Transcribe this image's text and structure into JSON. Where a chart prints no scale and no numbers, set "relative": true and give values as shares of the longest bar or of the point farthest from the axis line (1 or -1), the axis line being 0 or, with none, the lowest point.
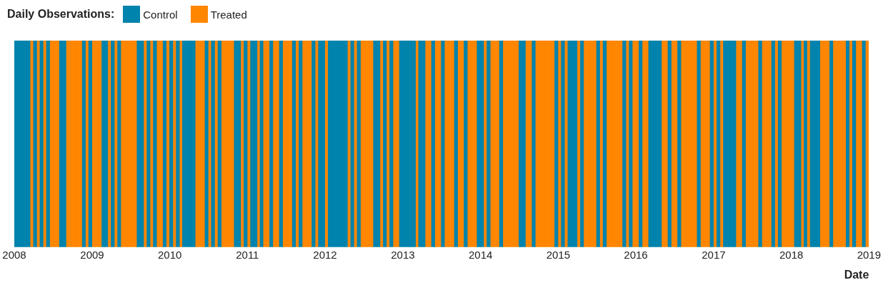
{
  "chart_data": {
    "type": "bar",
    "legend_title": "Daily Observations:",
    "xlabel": "Date",
    "relative": true,
    "stacked": true,
    "legend": "top left",
    "xlim": [
      "2008",
      "2019"
    ],
    "xticks": [
      "2008",
      "2009",
      "2010",
      "2011",
      "2012",
      "2013",
      "2014",
      "2015",
      "2016",
      "2017",
      "2018",
      "2019"
    ],
    "x": [
      "2008-01-08",
      "2008-01-23",
      "2008-02-08",
      "2008-02-23",
      "2008-03-08",
      "2008-03-23",
      "2008-04-08",
      "2008-04-23",
      "2008-05-08",
      "2008-05-23",
      "2008-06-08",
      "2008-06-23",
      "2008-07-08",
      "2008-07-23",
      "2008-08-08",
      "2008-08-23",
      "2008-09-08",
      "2008-09-23",
      "2008-10-08",
      "2008-10-23",
      "2008-11-08",
      "2008-11-23",
      "2008-12-08",
      "2008-12-23",
      "2009-01-08",
      "2009-01-23",
      "2009-02-08",
      "2009-02-23",
      "2009-03-08",
      "2009-03-23",
      "2009-04-08",
      "2009-04-23",
      "2009-05-08",
      "2009-05-23",
      "2009-06-08",
      "2009-06-23",
      "2009-07-08",
      "2009-07-23",
      "2009-08-08",
      "2009-08-23",
      "2009-09-08",
      "2009-09-23",
      "2009-10-08",
      "2009-10-23",
      "2009-11-08",
      "2009-11-23",
      "2009-12-08",
      "2009-12-23",
      "2010-01-08",
      "2010-01-23",
      "2010-02-08",
      "2010-02-23",
      "2010-03-08",
      "2010-03-23",
      "2010-04-08",
      "2010-04-23",
      "2010-05-08",
      "2010-05-23",
      "2010-06-08",
      "2010-06-23",
      "2010-07-08",
      "2010-07-23",
      "2010-08-08",
      "2010-08-23",
      "2010-09-08",
      "2010-09-23",
      "2010-10-08",
      "2010-10-23",
      "2010-11-08",
      "2010-11-23",
      "2010-12-08",
      "2010-12-23",
      "2011-01-08",
      "2011-01-23",
      "2011-02-08",
      "2011-02-23",
      "2011-03-08",
      "2011-03-23",
      "2011-04-08",
      "2011-04-23",
      "2011-05-08",
      "2011-05-23",
      "2011-06-08",
      "2011-06-23",
      "2011-07-08",
      "2011-07-23",
      "2011-08-08",
      "2011-08-23",
      "2011-09-08",
      "2011-09-23",
      "2011-10-08",
      "2011-10-23",
      "2011-11-08",
      "2011-11-23",
      "2011-12-08",
      "2011-12-23",
      "2012-01-08",
      "2012-01-23",
      "2012-02-08",
      "2012-02-23",
      "2012-03-08",
      "2012-03-23",
      "2012-04-08",
      "2012-04-23",
      "2012-05-08",
      "2012-05-23",
      "2012-06-08",
      "2012-06-23",
      "2012-07-08",
      "2012-07-23",
      "2012-08-08",
      "2012-08-23",
      "2012-09-08",
      "2012-09-23",
      "2012-10-08",
      "2012-10-23",
      "2012-11-08",
      "2012-11-23",
      "2012-12-08",
      "2012-12-23",
      "2013-01-08",
      "2013-01-23",
      "2013-02-08",
      "2013-02-23",
      "2013-03-08",
      "2013-03-23",
      "2013-04-08",
      "2013-04-23",
      "2013-05-08",
      "2013-05-23",
      "2013-06-08",
      "2013-06-23",
      "2013-07-08",
      "2013-07-23",
      "2013-08-08",
      "2013-08-23",
      "2013-09-08",
      "2013-09-23",
      "2013-10-08",
      "2013-10-23",
      "2013-11-08",
      "2013-11-23",
      "2013-12-08",
      "2013-12-23",
      "2014-01-08",
      "2014-01-23",
      "2014-02-08",
      "2014-02-23",
      "2014-03-08",
      "2014-03-23",
      "2014-04-08",
      "2014-04-23",
      "2014-05-08",
      "2014-05-23",
      "2014-06-08",
      "2014-06-23",
      "2014-07-08",
      "2014-07-23",
      "2014-08-08",
      "2014-08-23",
      "2014-09-08",
      "2014-09-23",
      "2014-10-08",
      "2014-10-23",
      "2014-11-08",
      "2014-11-23",
      "2014-12-08",
      "2014-12-23",
      "2015-01-08",
      "2015-01-23",
      "2015-02-08",
      "2015-02-23",
      "2015-03-08",
      "2015-03-23",
      "2015-04-08",
      "2015-04-23",
      "2015-05-08",
      "2015-05-23",
      "2015-06-08",
      "2015-06-23",
      "2015-07-08",
      "2015-07-23",
      "2015-08-08",
      "2015-08-23",
      "2015-09-08",
      "2015-09-23",
      "2015-10-08",
      "2015-10-23",
      "2015-11-08",
      "2015-11-23",
      "2015-12-08",
      "2015-12-23",
      "2016-01-08",
      "2016-01-23",
      "2016-02-08",
      "2016-02-23",
      "2016-03-08",
      "2016-03-23",
      "2016-04-08",
      "2016-04-23",
      "2016-05-08",
      "2016-05-23",
      "2016-06-08",
      "2016-06-23",
      "2016-07-08",
      "2016-07-23",
      "2016-08-08",
      "2016-08-23",
      "2016-09-08",
      "2016-09-23",
      "2016-10-08",
      "2016-10-23",
      "2016-11-08",
      "2016-11-23",
      "2016-12-08",
      "2016-12-23",
      "2017-01-08",
      "2017-01-23",
      "2017-02-08",
      "2017-02-23",
      "2017-03-08",
      "2017-03-23",
      "2017-04-08",
      "2017-04-23",
      "2017-05-08",
      "2017-05-23",
      "2017-06-08",
      "2017-06-23",
      "2017-07-08",
      "2017-07-23",
      "2017-08-08",
      "2017-08-23",
      "2017-09-08",
      "2017-09-23",
      "2017-10-08",
      "2017-10-23",
      "2017-11-08",
      "2017-11-23",
      "2017-12-08",
      "2017-12-23",
      "2018-01-08",
      "2018-01-23",
      "2018-02-08",
      "2018-02-23",
      "2018-03-08",
      "2018-03-23",
      "2018-04-08",
      "2018-04-23",
      "2018-05-08",
      "2018-05-23",
      "2018-06-08",
      "2018-06-23",
      "2018-07-08",
      "2018-07-23",
      "2018-08-08",
      "2018-08-23",
      "2018-09-08",
      "2018-09-23",
      "2018-10-08",
      "2018-10-23",
      "2018-11-08",
      "2018-11-23",
      "2018-12-08",
      "2018-12-23"
    ],
    "series": [
      {
        "name": "Control",
        "color": "#0083ac",
        "values": [
          1,
          1,
          1,
          1,
          1,
          null,
          1,
          null,
          1,
          null,
          1,
          null,
          null,
          null,
          1,
          1,
          null,
          null,
          null,
          null,
          null,
          1,
          null,
          1,
          null,
          null,
          null,
          1,
          1,
          null,
          1,
          null,
          1,
          null,
          null,
          null,
          null,
          null,
          1,
          1,
          null,
          1,
          null,
          1,
          null,
          null,
          1,
          null,
          1,
          null,
          1,
          null,
          1,
          1,
          1,
          1,
          null,
          null,
          null,
          1,
          null,
          1,
          null,
          1,
          null,
          null,
          null,
          null,
          1,
          1,
          null,
          1,
          null,
          1,
          1,
          null,
          1,
          null,
          null,
          1,
          null,
          null,
          1,
          null,
          null,
          null,
          1,
          null,
          1,
          null,
          null,
          null,
          1,
          null,
          1,
          1,
          null,
          1,
          1,
          1,
          1,
          1,
          1,
          null,
          1,
          null,
          1,
          null,
          null,
          null,
          null,
          1,
          1,
          null,
          1,
          null,
          1,
          null,
          null,
          1,
          1,
          1,
          1,
          1,
          null,
          1,
          1,
          null,
          null,
          1,
          null,
          null,
          1,
          null,
          null,
          null,
          1,
          null,
          null,
          1,
          null,
          null,
          null,
          1,
          1,
          null,
          1,
          null,
          null,
          null,
          1,
          null,
          null,
          null,
          null,
          null,
          1,
          1,
          null,
          null,
          1,
          null,
          null,
          null,
          null,
          null,
          null,
          1,
          null,
          1,
          null,
          1,
          1,
          1,
          null,
          1,
          null,
          null,
          null,
          null,
          1,
          null,
          1,
          null,
          null,
          null,
          null,
          null,
          1,
          null,
          1,
          null,
          null,
          1,
          null,
          null,
          1,
          1,
          1,
          1,
          null,
          null,
          1,
          null,
          null,
          1,
          null,
          null,
          null,
          null,
          null,
          1,
          null,
          null,
          null,
          1,
          null,
          1,
          null,
          1,
          1,
          1,
          1,
          null,
          null,
          1,
          null,
          null,
          null,
          null,
          1,
          null,
          null,
          null,
          1,
          null,
          1,
          null,
          null,
          null,
          null,
          1,
          1,
          null,
          1,
          null,
          1,
          1,
          1,
          null,
          null,
          null,
          1,
          null,
          null,
          null,
          null,
          1,
          null,
          1,
          null,
          null,
          1,
          null
        ]
      },
      {
        "name": "Treated",
        "color": "#ff8600",
        "values": [
          null,
          null,
          null,
          null,
          null,
          1,
          null,
          1,
          null,
          1,
          null,
          1,
          1,
          1,
          null,
          null,
          1,
          1,
          1,
          1,
          1,
          null,
          1,
          null,
          1,
          1,
          1,
          null,
          null,
          1,
          null,
          1,
          null,
          1,
          1,
          1,
          1,
          1,
          null,
          null,
          1,
          null,
          1,
          null,
          1,
          1,
          null,
          1,
          null,
          1,
          null,
          1,
          null,
          null,
          null,
          null,
          1,
          1,
          1,
          null,
          1,
          null,
          1,
          null,
          1,
          1,
          1,
          1,
          null,
          null,
          1,
          null,
          1,
          null,
          null,
          1,
          null,
          1,
          1,
          null,
          1,
          1,
          null,
          1,
          1,
          1,
          null,
          1,
          null,
          1,
          1,
          1,
          null,
          1,
          null,
          null,
          1,
          null,
          null,
          null,
          null,
          null,
          null,
          1,
          null,
          1,
          null,
          1,
          1,
          1,
          1,
          null,
          null,
          1,
          null,
          1,
          null,
          1,
          1,
          null,
          null,
          null,
          null,
          null,
          1,
          null,
          null,
          1,
          1,
          null,
          1,
          1,
          null,
          1,
          1,
          1,
          null,
          1,
          1,
          null,
          1,
          1,
          1,
          null,
          null,
          1,
          null,
          1,
          1,
          1,
          null,
          1,
          1,
          1,
          1,
          1,
          null,
          null,
          1,
          1,
          null,
          1,
          1,
          1,
          1,
          1,
          1,
          null,
          1,
          null,
          1,
          null,
          null,
          null,
          1,
          null,
          1,
          1,
          1,
          1,
          null,
          1,
          null,
          1,
          1,
          1,
          1,
          1,
          null,
          1,
          null,
          1,
          1,
          null,
          1,
          1,
          null,
          null,
          null,
          null,
          1,
          1,
          null,
          1,
          1,
          null,
          1,
          1,
          1,
          1,
          1,
          null,
          1,
          1,
          1,
          null,
          1,
          null,
          1,
          null,
          null,
          null,
          null,
          1,
          1,
          null,
          1,
          1,
          1,
          1,
          null,
          1,
          1,
          1,
          null,
          1,
          null,
          1,
          1,
          1,
          1,
          null,
          null,
          1,
          null,
          1,
          null,
          null,
          null,
          1,
          1,
          1,
          null,
          1,
          1,
          1,
          1,
          null,
          1,
          null,
          1,
          1,
          null,
          1
        ]
      }
    ]
  }
}
